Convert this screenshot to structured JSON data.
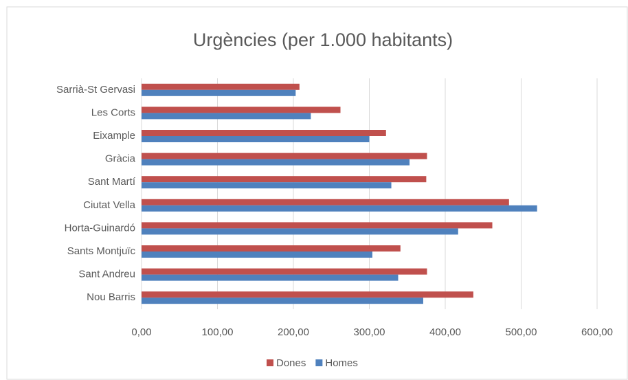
{
  "chart_data": {
    "type": "barh",
    "title": "Urgències (per 1.000 habitants)",
    "categories": [
      "Sarrià-St Gervasi",
      "Les Corts",
      "Eixample",
      "Gràcia",
      "Sant Martí",
      "Ciutat Vella",
      "Horta-Guinardó",
      "Sants Montjuïc",
      "Sant Andreu",
      "Nou Barris"
    ],
    "series": [
      {
        "name": "Dones",
        "color": "#c0504d",
        "values": [
          208,
          262,
          322,
          376,
          375,
          484,
          462,
          341,
          376,
          437
        ]
      },
      {
        "name": "Homes",
        "color": "#4f81bd",
        "values": [
          203,
          223,
          300,
          353,
          329,
          521,
          417,
          304,
          338,
          371
        ]
      }
    ],
    "xlim": [
      0,
      600
    ],
    "xticks": [
      {
        "value": 0,
        "label": "0,00"
      },
      {
        "value": 100,
        "label": "100,00"
      },
      {
        "value": 200,
        "label": "200,00"
      },
      {
        "value": 300,
        "label": "300,00"
      },
      {
        "value": 400,
        "label": "400,00"
      },
      {
        "value": 500,
        "label": "500,00"
      },
      {
        "value": 600,
        "label": "600,00"
      }
    ],
    "grid": true,
    "legend": "bottom"
  }
}
